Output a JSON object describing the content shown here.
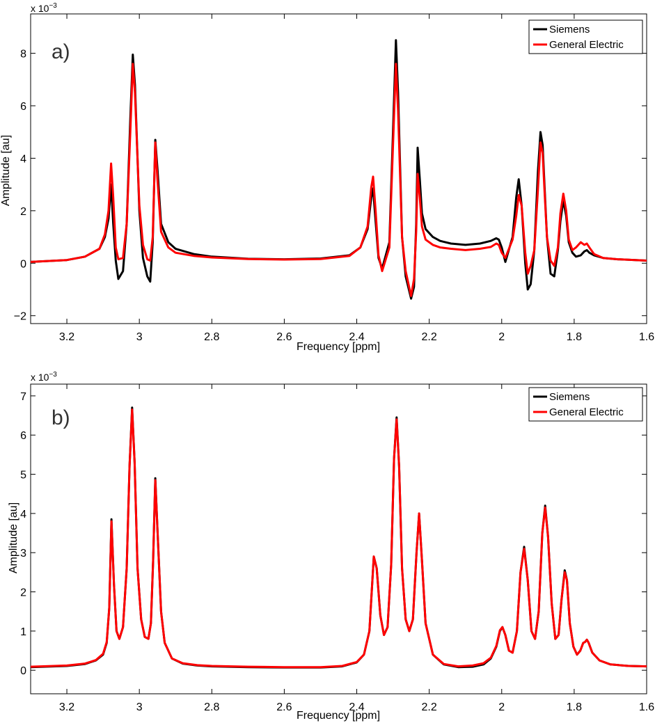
{
  "colors": {
    "siemens": "#000000",
    "ge": "#ff0000"
  },
  "chart_data": [
    {
      "type": "line",
      "panel_label": "a)",
      "xlabel": "Frequency [ppm]",
      "ylabel": "Amplitude [au]",
      "exponent_prefix": "x 10",
      "exponent_power": "−3",
      "xlim": [
        3.3,
        1.6
      ],
      "ylim": [
        -2.3,
        9.5
      ],
      "xticks": [
        3.2,
        3,
        2.8,
        2.6,
        2.4,
        2.2,
        2,
        1.8,
        1.6
      ],
      "xtick_labels": [
        "3.2",
        "3",
        "2.8",
        "2.6",
        "2.4",
        "2.2",
        "2",
        "1.8",
        "1.6"
      ],
      "yticks": [
        -2,
        0,
        2,
        4,
        6,
        8
      ],
      "ytick_labels": [
        "−2",
        "0",
        "2",
        "4",
        "6",
        "8"
      ],
      "legend": [
        "Siemens",
        "General Electric"
      ],
      "legend_position": "top-right",
      "series": [
        {
          "name": "Siemens",
          "color": "#000000",
          "x": [
            3.3,
            3.2,
            3.15,
            3.11,
            3.095,
            3.085,
            3.078,
            3.072,
            3.065,
            3.058,
            3.045,
            3.035,
            3.025,
            3.018,
            3.012,
            3.0,
            2.99,
            2.978,
            2.97,
            2.963,
            2.956,
            2.95,
            2.94,
            2.92,
            2.9,
            2.85,
            2.8,
            2.7,
            2.6,
            2.5,
            2.42,
            2.39,
            2.37,
            2.36,
            2.355,
            2.348,
            2.34,
            2.33,
            2.31,
            2.3,
            2.292,
            2.286,
            2.275,
            2.265,
            2.25,
            2.242,
            2.236,
            2.232,
            2.226,
            2.22,
            2.21,
            2.19,
            2.17,
            2.14,
            2.1,
            2.06,
            2.03,
            2.015,
            2.008,
            2.0,
            1.99,
            1.97,
            1.96,
            1.953,
            1.945,
            1.935,
            1.928,
            1.92,
            1.91,
            1.9,
            1.893,
            1.887,
            1.882,
            1.875,
            1.865,
            1.855,
            1.845,
            1.838,
            1.83,
            1.822,
            1.815,
            1.805,
            1.795,
            1.782,
            1.772,
            1.765,
            1.758,
            1.745,
            1.72,
            1.68,
            1.6
          ],
          "y": [
            0.05,
            0.12,
            0.25,
            0.55,
            1.0,
            1.7,
            3.0,
            1.5,
            0.1,
            -0.6,
            -0.3,
            1.5,
            5.5,
            7.95,
            6.8,
            2.0,
            0.2,
            -0.5,
            -0.7,
            0.8,
            4.7,
            3.6,
            1.5,
            0.8,
            0.55,
            0.35,
            0.25,
            0.17,
            0.15,
            0.18,
            0.3,
            0.6,
            1.3,
            2.5,
            2.85,
            1.6,
            0.2,
            -0.2,
            0.8,
            5.0,
            8.5,
            6.5,
            1.0,
            -0.5,
            -1.35,
            -0.9,
            1.5,
            4.4,
            3.2,
            1.9,
            1.3,
            1.0,
            0.85,
            0.75,
            0.7,
            0.75,
            0.85,
            0.95,
            0.9,
            0.6,
            0.05,
            1.0,
            2.5,
            3.2,
            2.2,
            0.0,
            -1.0,
            -0.8,
            0.5,
            3.5,
            5.0,
            4.5,
            3.0,
            1.0,
            -0.4,
            -0.5,
            0.5,
            1.6,
            2.4,
            1.8,
            0.8,
            0.4,
            0.25,
            0.3,
            0.45,
            0.5,
            0.4,
            0.3,
            0.2,
            0.15,
            0.1
          ]
        },
        {
          "name": "General Electric",
          "color": "#ff0000",
          "x": [
            3.3,
            3.2,
            3.15,
            3.11,
            3.095,
            3.085,
            3.078,
            3.072,
            3.065,
            3.058,
            3.045,
            3.035,
            3.025,
            3.018,
            3.012,
            3.0,
            2.99,
            2.978,
            2.97,
            2.963,
            2.956,
            2.95,
            2.94,
            2.92,
            2.9,
            2.85,
            2.8,
            2.7,
            2.6,
            2.5,
            2.42,
            2.39,
            2.37,
            2.36,
            2.355,
            2.348,
            2.34,
            2.33,
            2.31,
            2.3,
            2.292,
            2.286,
            2.275,
            2.265,
            2.25,
            2.242,
            2.236,
            2.232,
            2.226,
            2.22,
            2.21,
            2.19,
            2.17,
            2.14,
            2.1,
            2.06,
            2.03,
            2.015,
            2.008,
            2.0,
            1.99,
            1.97,
            1.96,
            1.953,
            1.945,
            1.935,
            1.928,
            1.92,
            1.91,
            1.9,
            1.893,
            1.887,
            1.882,
            1.875,
            1.865,
            1.855,
            1.845,
            1.838,
            1.83,
            1.822,
            1.815,
            1.805,
            1.795,
            1.782,
            1.772,
            1.765,
            1.758,
            1.745,
            1.72,
            1.68,
            1.6
          ],
          "y": [
            0.05,
            0.12,
            0.25,
            0.55,
            1.1,
            2.0,
            3.8,
            2.5,
            0.6,
            0.15,
            0.2,
            1.5,
            5.0,
            7.6,
            6.5,
            2.2,
            0.7,
            0.15,
            0.1,
            1.0,
            4.6,
            3.2,
            1.2,
            0.6,
            0.4,
            0.28,
            0.22,
            0.16,
            0.14,
            0.16,
            0.28,
            0.6,
            1.4,
            2.9,
            3.3,
            2.0,
            0.3,
            -0.3,
            0.6,
            4.5,
            7.6,
            5.8,
            1.0,
            -0.3,
            -1.25,
            -0.6,
            1.2,
            3.4,
            2.5,
            1.4,
            0.9,
            0.7,
            0.6,
            0.55,
            0.5,
            0.55,
            0.62,
            0.75,
            0.7,
            0.4,
            0.2,
            0.9,
            1.8,
            2.6,
            2.2,
            0.4,
            -0.4,
            -0.1,
            0.5,
            2.8,
            4.6,
            4.2,
            2.8,
            1.0,
            0.1,
            -0.1,
            0.6,
            1.9,
            2.65,
            2.0,
            0.9,
            0.5,
            0.6,
            0.8,
            0.7,
            0.75,
            0.6,
            0.35,
            0.2,
            0.15,
            0.1
          ]
        }
      ]
    },
    {
      "type": "line",
      "panel_label": "b)",
      "xlabel": "Frequency [ppm]",
      "ylabel": "Amplitude [au]",
      "exponent_prefix": "x 10",
      "exponent_power": "−3",
      "xlim": [
        3.3,
        1.6
      ],
      "ylim": [
        -0.6,
        7.3
      ],
      "xticks": [
        3.2,
        3,
        2.8,
        2.6,
        2.4,
        2.2,
        2,
        1.8,
        1.6
      ],
      "xtick_labels": [
        "3.2",
        "3",
        "2.8",
        "2.6",
        "2.4",
        "2.2",
        "2",
        "1.8",
        "1.6"
      ],
      "yticks": [
        0,
        1,
        2,
        3,
        4,
        5,
        6,
        7
      ],
      "ytick_labels": [
        "0",
        "1",
        "2",
        "3",
        "4",
        "5",
        "6",
        "7"
      ],
      "legend": [
        "Siemens",
        "General Electric"
      ],
      "legend_position": "top-right",
      "series": [
        {
          "name": "Siemens",
          "color": "#000000",
          "x": [
            3.3,
            3.2,
            3.15,
            3.12,
            3.1,
            3.09,
            3.083,
            3.077,
            3.07,
            3.063,
            3.055,
            3.045,
            3.035,
            3.027,
            3.02,
            3.013,
            3.005,
            2.995,
            2.985,
            2.975,
            2.968,
            2.962,
            2.956,
            2.95,
            2.94,
            2.93,
            2.91,
            2.88,
            2.84,
            2.8,
            2.7,
            2.6,
            2.5,
            2.44,
            2.4,
            2.38,
            2.365,
            2.353,
            2.345,
            2.335,
            2.325,
            2.315,
            2.305,
            2.297,
            2.29,
            2.283,
            2.275,
            2.265,
            2.255,
            2.245,
            2.235,
            2.228,
            2.22,
            2.21,
            2.19,
            2.16,
            2.12,
            2.08,
            2.05,
            2.03,
            2.015,
            2.005,
            1.998,
            1.99,
            1.98,
            1.97,
            1.958,
            1.948,
            1.938,
            1.928,
            1.918,
            1.908,
            1.898,
            1.888,
            1.88,
            1.872,
            1.862,
            1.852,
            1.843,
            1.835,
            1.826,
            1.82,
            1.812,
            1.802,
            1.792,
            1.783,
            1.775,
            1.77,
            1.765,
            1.76,
            1.75,
            1.73,
            1.7,
            1.65,
            1.6
          ],
          "y": [
            0.08,
            0.11,
            0.16,
            0.25,
            0.4,
            0.7,
            1.6,
            3.85,
            2.2,
            1.0,
            0.8,
            1.1,
            2.6,
            5.2,
            6.7,
            5.3,
            2.6,
            1.3,
            0.85,
            0.8,
            1.2,
            2.8,
            4.9,
            3.6,
            1.5,
            0.7,
            0.3,
            0.17,
            0.12,
            0.1,
            0.08,
            0.07,
            0.07,
            0.1,
            0.2,
            0.4,
            1.0,
            2.9,
            2.6,
            1.4,
            0.9,
            1.1,
            2.7,
            5.4,
            6.45,
            5.2,
            2.6,
            1.3,
            1.0,
            1.3,
            3.0,
            4.0,
            2.8,
            1.2,
            0.4,
            0.15,
            0.08,
            0.09,
            0.15,
            0.3,
            0.6,
            1.0,
            1.1,
            0.9,
            0.5,
            0.45,
            1.0,
            2.5,
            3.15,
            2.3,
            1.0,
            0.8,
            1.5,
            3.5,
            4.2,
            3.4,
            1.7,
            0.8,
            0.9,
            1.8,
            2.55,
            2.3,
            1.2,
            0.6,
            0.4,
            0.5,
            0.7,
            0.72,
            0.78,
            0.7,
            0.45,
            0.25,
            0.15,
            0.11,
            0.1
          ]
        },
        {
          "name": "General Electric",
          "color": "#ff0000",
          "x": [
            3.3,
            3.2,
            3.15,
            3.12,
            3.1,
            3.09,
            3.083,
            3.077,
            3.07,
            3.063,
            3.055,
            3.045,
            3.035,
            3.027,
            3.02,
            3.013,
            3.005,
            2.995,
            2.985,
            2.975,
            2.968,
            2.962,
            2.956,
            2.95,
            2.94,
            2.93,
            2.91,
            2.88,
            2.84,
            2.8,
            2.7,
            2.6,
            2.5,
            2.44,
            2.4,
            2.38,
            2.365,
            2.353,
            2.345,
            2.335,
            2.325,
            2.315,
            2.305,
            2.297,
            2.29,
            2.283,
            2.275,
            2.265,
            2.255,
            2.245,
            2.235,
            2.228,
            2.22,
            2.21,
            2.19,
            2.16,
            2.12,
            2.08,
            2.05,
            2.03,
            2.015,
            2.005,
            1.998,
            1.99,
            1.98,
            1.97,
            1.958,
            1.948,
            1.938,
            1.928,
            1.918,
            1.908,
            1.898,
            1.888,
            1.88,
            1.872,
            1.862,
            1.852,
            1.843,
            1.835,
            1.826,
            1.82,
            1.812,
            1.802,
            1.792,
            1.783,
            1.775,
            1.77,
            1.765,
            1.76,
            1.75,
            1.73,
            1.7,
            1.65,
            1.6
          ],
          "y": [
            0.09,
            0.12,
            0.17,
            0.26,
            0.42,
            0.72,
            1.6,
            3.8,
            2.2,
            1.0,
            0.8,
            1.1,
            2.6,
            5.2,
            6.65,
            5.3,
            2.6,
            1.3,
            0.85,
            0.8,
            1.2,
            2.8,
            4.85,
            3.6,
            1.5,
            0.7,
            0.3,
            0.18,
            0.13,
            0.11,
            0.09,
            0.08,
            0.08,
            0.11,
            0.21,
            0.4,
            1.0,
            2.9,
            2.6,
            1.4,
            0.9,
            1.1,
            2.7,
            5.4,
            6.4,
            5.2,
            2.6,
            1.3,
            1.0,
            1.3,
            3.0,
            4.0,
            2.8,
            1.2,
            0.4,
            0.16,
            0.1,
            0.12,
            0.18,
            0.32,
            0.62,
            1.02,
            1.1,
            0.9,
            0.5,
            0.45,
            1.0,
            2.5,
            3.1,
            2.3,
            1.0,
            0.8,
            1.5,
            3.5,
            4.15,
            3.4,
            1.7,
            0.8,
            0.9,
            1.8,
            2.5,
            2.3,
            1.2,
            0.6,
            0.4,
            0.5,
            0.7,
            0.72,
            0.78,
            0.7,
            0.45,
            0.25,
            0.15,
            0.11,
            0.1
          ]
        }
      ]
    }
  ]
}
